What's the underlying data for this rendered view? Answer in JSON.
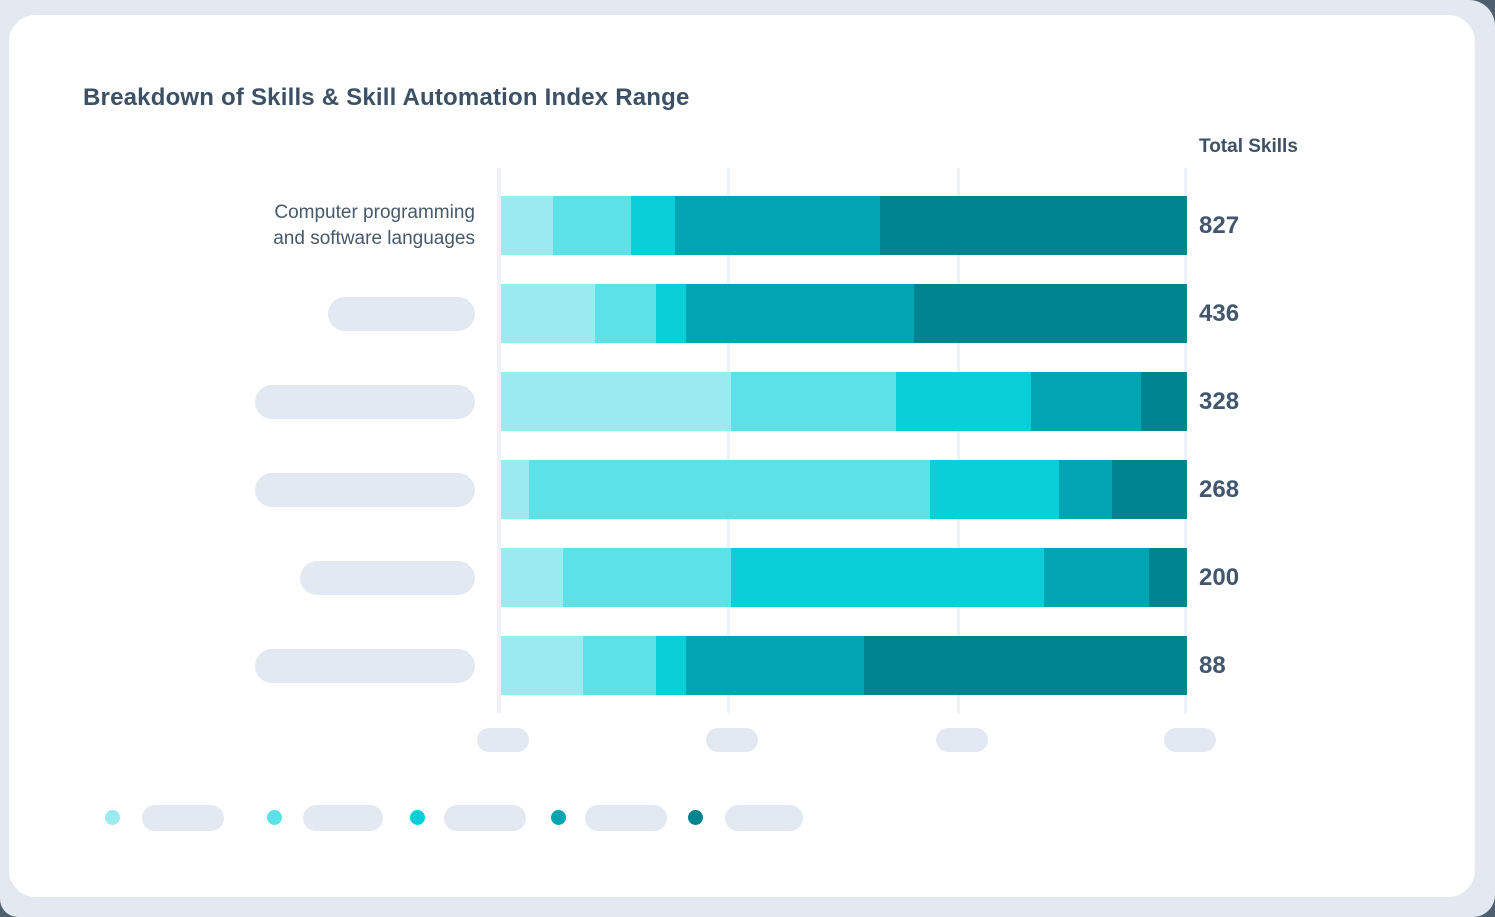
{
  "title": "Breakdown of Skills & Skill Automation Index Range",
  "columns": {
    "total_header": "Total Skills"
  },
  "colors": {
    "page_background": "#4e5f6d",
    "surface_background": "#e4e9f1",
    "card_background": "#ffffff",
    "heading_text": "#3d5166",
    "value_text": "#42566d",
    "label_text": "#47596b",
    "placeholder_pill": "#e3e9f2",
    "gridline": "#edf2f9"
  },
  "chart_data": {
    "type": "bar",
    "orientation": "horizontal_stacked",
    "title": "Breakdown of Skills & Skill Automation Index Range",
    "value_column_label": "Total Skills",
    "grid": true,
    "x_axis": {
      "tick_count": 4,
      "tick_labels": [
        "",
        "",
        "",
        ""
      ],
      "tick_labels_redacted_as_pills": true
    },
    "legend": {
      "position": "bottom",
      "entry_count": 5,
      "labels": [
        "",
        "",
        "",
        "",
        ""
      ],
      "labels_redacted_as_pills": true
    },
    "series_colors": [
      "#9aeaef",
      "#5ce1e7",
      "#0bcfd8",
      "#00a5b1",
      "#008490"
    ],
    "rows": [
      {
        "label": "Computer programming and software languages",
        "label_lines": [
          "Computer programming",
          "and software languages"
        ],
        "label_redacted": false,
        "total": "827",
        "segments_pct": [
          7.6,
          11.4,
          6.4,
          29.9,
          44.7
        ]
      },
      {
        "label": "",
        "label_lines": [],
        "label_redacted": true,
        "total": "436",
        "segments_pct": [
          13.7,
          8.9,
          4.4,
          33.2,
          39.8
        ]
      },
      {
        "label": "",
        "label_lines": [],
        "label_redacted": true,
        "total": "328",
        "segments_pct": [
          33.5,
          24.1,
          19.7,
          16.0,
          6.7
        ]
      },
      {
        "label": "",
        "label_lines": [],
        "label_redacted": true,
        "total": "268",
        "segments_pct": [
          4.1,
          58.5,
          18.8,
          7.7,
          10.9
        ]
      },
      {
        "label": "",
        "label_lines": [],
        "label_redacted": true,
        "total": "200",
        "segments_pct": [
          9.0,
          24.5,
          45.6,
          15.3,
          5.6
        ]
      },
      {
        "label": "",
        "label_lines": [],
        "label_redacted": true,
        "total": "88",
        "segments_pct": [
          12.0,
          10.6,
          4.4,
          25.9,
          47.1
        ]
      }
    ],
    "totals": [
      827,
      436,
      328,
      268,
      200,
      88
    ]
  }
}
